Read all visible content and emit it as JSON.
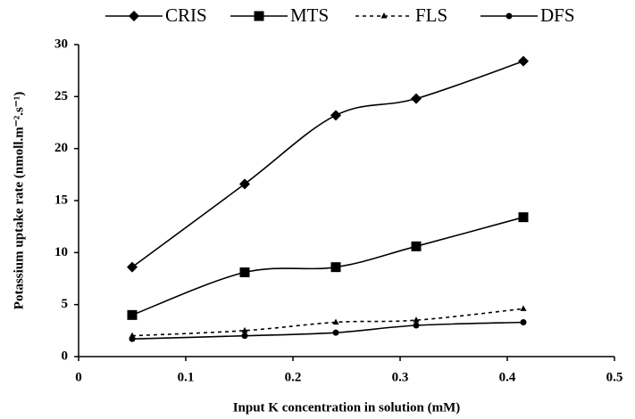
{
  "chart_data": {
    "type": "line",
    "xlabel": "Input K concentration in solution (mM)",
    "ylabel": "Potassium uptake rate (nmoll.m⁻².s⁻¹)",
    "x": [
      0.05,
      0.155,
      0.24,
      0.315,
      0.415
    ],
    "series": [
      {
        "name": "CRIS",
        "color": "#000000",
        "marker": "diamond",
        "line_style": "solid",
        "values": [
          8.6,
          16.6,
          23.2,
          24.8,
          28.4
        ]
      },
      {
        "name": "MTS",
        "color": "#000000",
        "marker": "square",
        "line_style": "solid",
        "values": [
          4.0,
          8.1,
          8.6,
          10.6,
          13.4
        ]
      },
      {
        "name": "FLS",
        "color": "#000000",
        "marker": "triangle",
        "line_style": "dashed",
        "values": [
          2.0,
          2.5,
          3.3,
          3.5,
          4.6
        ]
      },
      {
        "name": "DFS",
        "color": "#000000",
        "marker": "circle",
        "line_style": "solid",
        "values": [
          1.7,
          2.0,
          2.3,
          3.0,
          3.3
        ]
      }
    ],
    "xlim": [
      0,
      0.5
    ],
    "xticks": [
      0,
      0.1,
      0.2,
      0.3,
      0.4,
      0.5
    ],
    "ylim": [
      0,
      30
    ],
    "yticks": [
      0,
      5,
      10,
      15,
      20,
      25,
      30
    ],
    "legend": "top"
  }
}
